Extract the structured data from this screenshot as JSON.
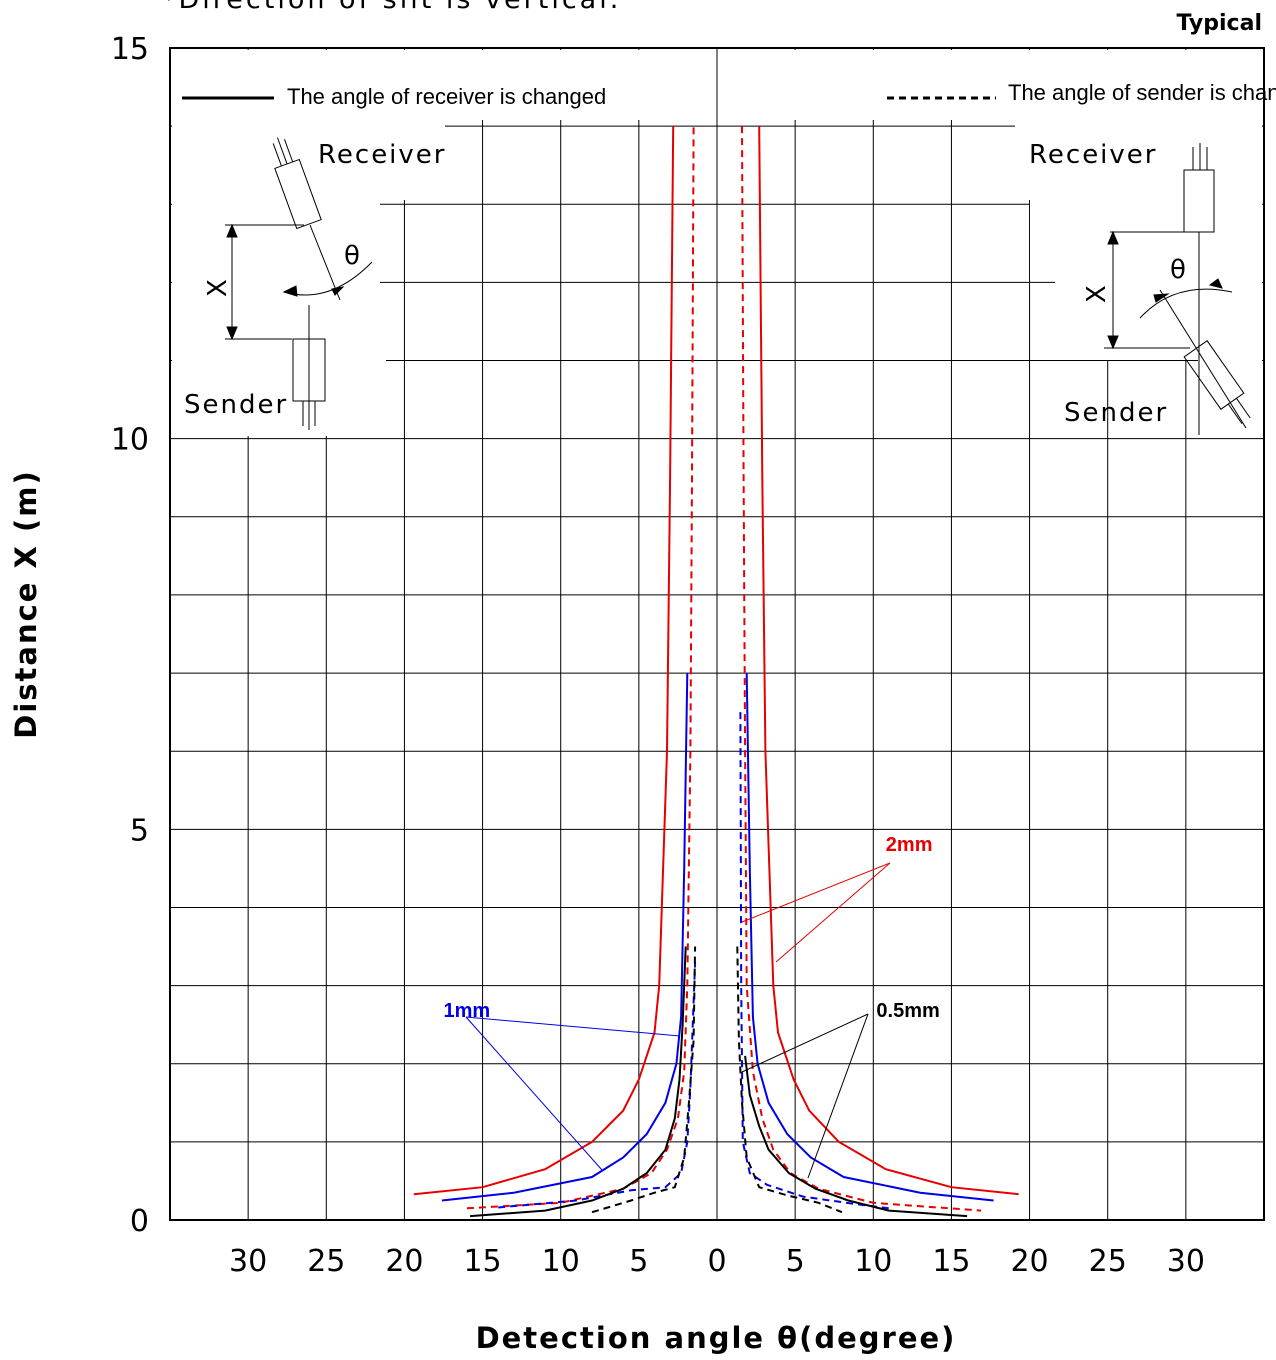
{
  "note": "*Direction of slit is vertical.",
  "typical": "Typical",
  "legend": {
    "solid": "The angle of receiver is changed",
    "dashed": "The angle of sender is changed"
  },
  "diagram": {
    "receiver": "Receiver",
    "sender": "Sender",
    "x_symbol": "X",
    "theta_symbol": "θ"
  },
  "chart_data": {
    "type": "line",
    "title": "",
    "xlabel": "Detection angle θ(degree)",
    "ylabel": "Distance X (m)",
    "xlim": [
      -35,
      35
    ],
    "ylim": [
      0,
      15
    ],
    "x_ticks": [
      {
        "v": -30,
        "t": "30"
      },
      {
        "v": -25,
        "t": "25"
      },
      {
        "v": -20,
        "t": "20"
      },
      {
        "v": -15,
        "t": "15"
      },
      {
        "v": -10,
        "t": "10"
      },
      {
        "v": -5,
        "t": "5"
      },
      {
        "v": 0,
        "t": "0"
      },
      {
        "v": 5,
        "t": "5"
      },
      {
        "v": 10,
        "t": "10"
      },
      {
        "v": 15,
        "t": "15"
      },
      {
        "v": 20,
        "t": "20"
      },
      {
        "v": 25,
        "t": "25"
      },
      {
        "v": 30,
        "t": "30"
      }
    ],
    "y_ticks": [
      {
        "v": 0,
        "t": "0"
      },
      {
        "v": 5,
        "t": "5"
      },
      {
        "v": 10,
        "t": "10"
      },
      {
        "v": 15,
        "t": "15"
      }
    ],
    "grid": true,
    "series": [
      {
        "name": "2mm",
        "style": "solid",
        "color": "#e60000",
        "points": [
          [
            -19.4,
            0.33
          ],
          [
            -15,
            0.42
          ],
          [
            -11,
            0.65
          ],
          [
            -8,
            1.0
          ],
          [
            -6,
            1.4
          ],
          [
            -5,
            1.8
          ],
          [
            -4,
            2.4
          ],
          [
            -3.7,
            3.0
          ],
          [
            -3.2,
            6.0
          ],
          [
            -3.0,
            9.5
          ],
          [
            -2.8,
            14.0
          ]
        ],
        "points_right": [
          [
            2.7,
            14.0
          ],
          [
            2.9,
            9.5
          ],
          [
            3.1,
            6.0
          ],
          [
            3.6,
            3.0
          ],
          [
            3.9,
            2.4
          ],
          [
            4.9,
            1.8
          ],
          [
            5.9,
            1.4
          ],
          [
            7.8,
            1.0
          ],
          [
            10.8,
            0.65
          ],
          [
            15,
            0.42
          ],
          [
            19.3,
            0.33
          ]
        ]
      },
      {
        "name": "2mm",
        "style": "dashed",
        "color": "#e60000",
        "points": [
          [
            -16,
            0.15
          ],
          [
            -10,
            0.22
          ],
          [
            -6,
            0.4
          ],
          [
            -4.2,
            0.6
          ],
          [
            -3.2,
            0.9
          ],
          [
            -2.5,
            1.3
          ],
          [
            -2.1,
            1.9
          ],
          [
            -1.9,
            3.0
          ],
          [
            -1.7,
            6.0
          ],
          [
            -1.6,
            9.5
          ],
          [
            -1.5,
            14.0
          ]
        ],
        "points_right": [
          [
            1.6,
            14.0
          ],
          [
            1.7,
            9.5
          ],
          [
            1.8,
            6.0
          ],
          [
            1.9,
            3.0
          ],
          [
            2.3,
            1.9
          ],
          [
            2.9,
            1.3
          ],
          [
            3.6,
            0.9
          ],
          [
            4.7,
            0.6
          ],
          [
            6.5,
            0.4
          ],
          [
            10,
            0.22
          ],
          [
            16.9,
            0.12
          ]
        ]
      },
      {
        "name": "1mm",
        "style": "solid",
        "color": "#0000e6",
        "points": [
          [
            -17.6,
            0.25
          ],
          [
            -13,
            0.35
          ],
          [
            -8,
            0.55
          ],
          [
            -6,
            0.8
          ],
          [
            -4.5,
            1.1
          ],
          [
            -3.3,
            1.5
          ],
          [
            -2.6,
            2.0
          ],
          [
            -2.3,
            2.6
          ],
          [
            -2.1,
            4.5
          ],
          [
            -1.9,
            7.0
          ]
        ],
        "points_right": [
          [
            1.9,
            7.0
          ],
          [
            2.1,
            4.5
          ],
          [
            2.3,
            2.6
          ],
          [
            2.6,
            2.0
          ],
          [
            3.3,
            1.5
          ],
          [
            4.5,
            1.1
          ],
          [
            6,
            0.8
          ],
          [
            8.1,
            0.55
          ],
          [
            13,
            0.35
          ],
          [
            17.7,
            0.25
          ]
        ]
      },
      {
        "name": "1mm",
        "style": "dashed",
        "color": "#0000e6",
        "points": [
          [
            -14,
            0.16
          ],
          [
            -9,
            0.25
          ],
          [
            -5.5,
            0.38
          ],
          [
            -3.3,
            0.42
          ],
          [
            -2.3,
            0.6
          ],
          [
            -1.9,
            1.0
          ],
          [
            -1.7,
            1.7
          ],
          [
            -1.4,
            3.3
          ]
        ],
        "points_right": [
          [
            1.5,
            6.5
          ],
          [
            1.55,
            3.0
          ],
          [
            1.6,
            2.0
          ],
          [
            1.65,
            1.0
          ],
          [
            2.1,
            0.6
          ],
          [
            3.2,
            0.45
          ],
          [
            5.5,
            0.3
          ],
          [
            9,
            0.2
          ],
          [
            11,
            0.15
          ]
        ]
      },
      {
        "name": "0.5mm",
        "style": "solid",
        "color": "#000000",
        "points": [
          [
            -15.8,
            0.05
          ],
          [
            -11,
            0.12
          ],
          [
            -8,
            0.25
          ],
          [
            -6,
            0.4
          ],
          [
            -4.5,
            0.6
          ],
          [
            -3.3,
            0.9
          ],
          [
            -2.7,
            1.3
          ],
          [
            -2.4,
            1.8
          ],
          [
            -2.2,
            2.5
          ],
          [
            -2.0,
            3.5
          ]
        ],
        "points_right": [
          [
            1.8,
            2.1
          ],
          [
            2.1,
            1.6
          ],
          [
            2.7,
            1.2
          ],
          [
            3.3,
            0.9
          ],
          [
            4.6,
            0.6
          ],
          [
            6.3,
            0.4
          ],
          [
            8.4,
            0.25
          ],
          [
            11,
            0.12
          ],
          [
            16,
            0.05
          ]
        ]
      },
      {
        "name": "0.5mm",
        "style": "dashed",
        "color": "#000000",
        "points": [
          [
            -8,
            0.1
          ],
          [
            -5.5,
            0.25
          ],
          [
            -4,
            0.35
          ],
          [
            -2.7,
            0.42
          ],
          [
            -2.1,
            0.8
          ],
          [
            -1.8,
            1.5
          ],
          [
            -1.5,
            2.3
          ],
          [
            -1.4,
            3.5
          ]
        ],
        "points_right": [
          [
            1.3,
            3.5
          ],
          [
            1.4,
            2.3
          ],
          [
            1.6,
            1.5
          ],
          [
            1.9,
            0.8
          ],
          [
            2.7,
            0.42
          ],
          [
            4.4,
            0.32
          ],
          [
            6.5,
            0.22
          ],
          [
            8,
            0.1
          ]
        ]
      }
    ],
    "annotations": [
      {
        "text": "2mm",
        "color": "#e60000",
        "x": 10.8,
        "y": 4.72
      },
      {
        "text": "1mm",
        "color": "#0000e6",
        "x": -17.5,
        "y": 2.6
      },
      {
        "text": "0.5mm",
        "color": "#000000",
        "x": 10.2,
        "y": 2.6
      }
    ]
  }
}
